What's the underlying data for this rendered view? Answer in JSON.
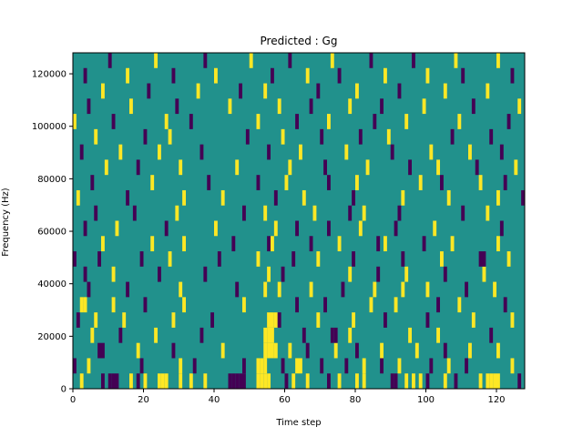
{
  "chart_data": {
    "type": "heatmap",
    "title": "Predicted : Gg",
    "xlabel": "Time step",
    "ylabel": "Frequency (Hz)",
    "xlim": [
      0,
      128
    ],
    "ylim": [
      0,
      128000
    ],
    "x_ticks": [
      0,
      20,
      40,
      60,
      80,
      100,
      120
    ],
    "y_ticks": [
      0,
      20000,
      40000,
      60000,
      80000,
      100000,
      120000
    ],
    "x_tick_labels": [
      "0",
      "20",
      "40",
      "60",
      "80",
      "100",
      "120"
    ],
    "y_tick_labels": [
      "0",
      "20000",
      "40000",
      "60000",
      "80000",
      "100000",
      "120000"
    ],
    "grid": false,
    "colormap": "viridis",
    "values_range": [
      -1,
      1
    ],
    "colors": {
      "low": "#440154",
      "mid": "#21918c",
      "high": "#fde725"
    },
    "background_value": 0,
    "cells": [
      [
        2,
        0,
        1
      ],
      [
        8,
        0,
        -1
      ],
      [
        10,
        0,
        -1
      ],
      [
        11,
        0,
        -1
      ],
      [
        12,
        0,
        -1
      ],
      [
        16,
        0,
        1
      ],
      [
        18,
        0,
        -1
      ],
      [
        20,
        0,
        1
      ],
      [
        24,
        0,
        1
      ],
      [
        25,
        0,
        1
      ],
      [
        26,
        0,
        1
      ],
      [
        30,
        0,
        1
      ],
      [
        33,
        0,
        1
      ],
      [
        37,
        0,
        1
      ],
      [
        44,
        0,
        -1
      ],
      [
        45,
        0,
        -1
      ],
      [
        46,
        0,
        -1
      ],
      [
        47,
        0,
        -1
      ],
      [
        48,
        0,
        -1
      ],
      [
        52,
        0,
        1
      ],
      [
        53,
        0,
        1
      ],
      [
        54,
        0,
        1
      ],
      [
        55,
        0,
        1
      ],
      [
        60,
        0,
        -1
      ],
      [
        62,
        0,
        1
      ],
      [
        66,
        0,
        1
      ],
      [
        72,
        0,
        -1
      ],
      [
        75,
        0,
        1
      ],
      [
        80,
        0,
        1
      ],
      [
        82,
        0,
        1
      ],
      [
        90,
        0,
        -1
      ],
      [
        91,
        0,
        -1
      ],
      [
        94,
        0,
        1
      ],
      [
        96,
        0,
        1
      ],
      [
        98,
        0,
        1
      ],
      [
        100,
        0,
        -1
      ],
      [
        105,
        0,
        1
      ],
      [
        108,
        0,
        -1
      ],
      [
        115,
        0,
        1
      ],
      [
        117,
        0,
        1
      ],
      [
        118,
        0,
        1
      ],
      [
        119,
        0,
        1
      ],
      [
        120,
        0,
        1
      ],
      [
        126,
        0,
        -1
      ],
      [
        0,
        1,
        -1
      ],
      [
        4,
        1,
        1
      ],
      [
        19,
        1,
        -1
      ],
      [
        30,
        1,
        1
      ],
      [
        34,
        1,
        -1
      ],
      [
        48,
        1,
        -1
      ],
      [
        52,
        1,
        1
      ],
      [
        53,
        1,
        1
      ],
      [
        54,
        1,
        1
      ],
      [
        59,
        1,
        -1
      ],
      [
        63,
        1,
        1
      ],
      [
        64,
        1,
        1
      ],
      [
        70,
        1,
        -1
      ],
      [
        77,
        1,
        -1
      ],
      [
        82,
        1,
        1
      ],
      [
        87,
        1,
        -1
      ],
      [
        92,
        1,
        1
      ],
      [
        101,
        1,
        -1
      ],
      [
        106,
        1,
        1
      ],
      [
        111,
        1,
        -1
      ],
      [
        124,
        1,
        1
      ],
      [
        7,
        2,
        -1
      ],
      [
        8,
        2,
        -1
      ],
      [
        18,
        2,
        1
      ],
      [
        28,
        2,
        -1
      ],
      [
        42,
        2,
        1
      ],
      [
        54,
        2,
        1
      ],
      [
        55,
        2,
        1
      ],
      [
        56,
        2,
        1
      ],
      [
        57,
        2,
        1
      ],
      [
        61,
        2,
        1
      ],
      [
        66,
        2,
        -1
      ],
      [
        74,
        2,
        1
      ],
      [
        80,
        2,
        -1
      ],
      [
        87,
        2,
        1
      ],
      [
        97,
        2,
        1
      ],
      [
        105,
        2,
        -1
      ],
      [
        112,
        2,
        1
      ],
      [
        120,
        2,
        1
      ],
      [
        5,
        3,
        1
      ],
      [
        13,
        3,
        -1
      ],
      [
        23,
        3,
        1
      ],
      [
        36,
        3,
        -1
      ],
      [
        54,
        3,
        1
      ],
      [
        55,
        3,
        1
      ],
      [
        56,
        3,
        1
      ],
      [
        65,
        3,
        -1
      ],
      [
        73,
        3,
        -1
      ],
      [
        74,
        3,
        -1
      ],
      [
        78,
        3,
        1
      ],
      [
        95,
        3,
        1
      ],
      [
        103,
        3,
        1
      ],
      [
        118,
        3,
        -1
      ],
      [
        1,
        4,
        -1
      ],
      [
        6,
        4,
        1
      ],
      [
        14,
        4,
        1
      ],
      [
        28,
        4,
        1
      ],
      [
        39,
        4,
        -1
      ],
      [
        55,
        4,
        1
      ],
      [
        56,
        4,
        1
      ],
      [
        57,
        4,
        1
      ],
      [
        58,
        4,
        -1
      ],
      [
        69,
        4,
        1
      ],
      [
        79,
        4,
        1
      ],
      [
        88,
        4,
        -1
      ],
      [
        100,
        4,
        -1
      ],
      [
        113,
        4,
        1
      ],
      [
        124,
        4,
        1
      ],
      [
        2,
        5,
        1
      ],
      [
        3,
        5,
        1
      ],
      [
        11,
        5,
        1
      ],
      [
        20,
        5,
        -1
      ],
      [
        31,
        5,
        1
      ],
      [
        48,
        5,
        1
      ],
      [
        63,
        5,
        -1
      ],
      [
        71,
        5,
        -1
      ],
      [
        84,
        5,
        1
      ],
      [
        91,
        5,
        1
      ],
      [
        103,
        5,
        -1
      ],
      [
        109,
        5,
        1
      ],
      [
        122,
        5,
        -1
      ],
      [
        4,
        6,
        -1
      ],
      [
        15,
        6,
        -1
      ],
      [
        30,
        6,
        1
      ],
      [
        46,
        6,
        -1
      ],
      [
        54,
        6,
        1
      ],
      [
        58,
        6,
        1
      ],
      [
        67,
        6,
        1
      ],
      [
        76,
        6,
        -1
      ],
      [
        85,
        6,
        1
      ],
      [
        93,
        6,
        1
      ],
      [
        100,
        6,
        1
      ],
      [
        111,
        6,
        -1
      ],
      [
        119,
        6,
        1
      ],
      [
        3,
        7,
        -1
      ],
      [
        11,
        7,
        1
      ],
      [
        24,
        7,
        -1
      ],
      [
        37,
        7,
        -1
      ],
      [
        55,
        7,
        1
      ],
      [
        59,
        7,
        -1
      ],
      [
        78,
        7,
        1
      ],
      [
        86,
        7,
        -1
      ],
      [
        94,
        7,
        1
      ],
      [
        105,
        7,
        -1
      ],
      [
        116,
        7,
        1
      ],
      [
        0,
        8,
        -1
      ],
      [
        7,
        8,
        -1
      ],
      [
        19,
        8,
        -1
      ],
      [
        27,
        8,
        1
      ],
      [
        41,
        8,
        -1
      ],
      [
        52,
        8,
        1
      ],
      [
        62,
        8,
        -1
      ],
      [
        69,
        8,
        1
      ],
      [
        79,
        8,
        -1
      ],
      [
        93,
        8,
        -1
      ],
      [
        104,
        8,
        1
      ],
      [
        115,
        8,
        -1
      ],
      [
        116,
        8,
        -1
      ],
      [
        123,
        8,
        1
      ],
      [
        8,
        9,
        1
      ],
      [
        22,
        9,
        1
      ],
      [
        31,
        9,
        1
      ],
      [
        45,
        9,
        -1
      ],
      [
        55,
        9,
        -1
      ],
      [
        56,
        9,
        1
      ],
      [
        67,
        9,
        -1
      ],
      [
        75,
        9,
        1
      ],
      [
        86,
        9,
        -1
      ],
      [
        88,
        9,
        1
      ],
      [
        99,
        9,
        -1
      ],
      [
        107,
        9,
        1
      ],
      [
        120,
        9,
        1
      ],
      [
        3,
        10,
        -1
      ],
      [
        12,
        10,
        1
      ],
      [
        26,
        10,
        -1
      ],
      [
        40,
        10,
        1
      ],
      [
        57,
        10,
        1
      ],
      [
        63,
        10,
        -1
      ],
      [
        72,
        10,
        -1
      ],
      [
        81,
        10,
        1
      ],
      [
        91,
        10,
        -1
      ],
      [
        102,
        10,
        1
      ],
      [
        121,
        10,
        -1
      ],
      [
        6,
        11,
        -1
      ],
      [
        17,
        11,
        -1
      ],
      [
        29,
        11,
        1
      ],
      [
        48,
        11,
        -1
      ],
      [
        54,
        11,
        1
      ],
      [
        68,
        11,
        1
      ],
      [
        78,
        11,
        -1
      ],
      [
        82,
        11,
        1
      ],
      [
        92,
        11,
        -1
      ],
      [
        110,
        11,
        -1
      ],
      [
        117,
        11,
        1
      ],
      [
        1,
        12,
        1
      ],
      [
        15,
        12,
        -1
      ],
      [
        31,
        12,
        1
      ],
      [
        42,
        12,
        1
      ],
      [
        57,
        12,
        -1
      ],
      [
        65,
        12,
        1
      ],
      [
        79,
        12,
        -1
      ],
      [
        93,
        12,
        1
      ],
      [
        106,
        12,
        1
      ],
      [
        120,
        12,
        1
      ],
      [
        127,
        12,
        -1
      ],
      [
        5,
        13,
        -1
      ],
      [
        22,
        13,
        1
      ],
      [
        38,
        13,
        -1
      ],
      [
        52,
        13,
        -1
      ],
      [
        60,
        13,
        1
      ],
      [
        72,
        13,
        -1
      ],
      [
        80,
        13,
        1
      ],
      [
        98,
        13,
        1
      ],
      [
        104,
        13,
        -1
      ],
      [
        115,
        13,
        1
      ],
      [
        122,
        13,
        -1
      ],
      [
        9,
        14,
        1
      ],
      [
        18,
        14,
        -1
      ],
      [
        30,
        14,
        1
      ],
      [
        46,
        14,
        1
      ],
      [
        61,
        14,
        1
      ],
      [
        71,
        14,
        -1
      ],
      [
        83,
        14,
        1
      ],
      [
        95,
        14,
        -1
      ],
      [
        103,
        14,
        1
      ],
      [
        114,
        14,
        -1
      ],
      [
        125,
        14,
        1
      ],
      [
        2,
        15,
        -1
      ],
      [
        13,
        15,
        1
      ],
      [
        24,
        15,
        1
      ],
      [
        36,
        15,
        -1
      ],
      [
        55,
        15,
        -1
      ],
      [
        64,
        15,
        1
      ],
      [
        77,
        15,
        1
      ],
      [
        90,
        15,
        -1
      ],
      [
        101,
        15,
        1
      ],
      [
        112,
        15,
        1
      ],
      [
        121,
        15,
        -1
      ],
      [
        6,
        16,
        1
      ],
      [
        20,
        16,
        -1
      ],
      [
        27,
        16,
        1
      ],
      [
        49,
        16,
        -1
      ],
      [
        59,
        16,
        1
      ],
      [
        70,
        16,
        -1
      ],
      [
        81,
        16,
        -1
      ],
      [
        89,
        16,
        1
      ],
      [
        107,
        16,
        -1
      ],
      [
        118,
        16,
        -1
      ],
      [
        0,
        17,
        1
      ],
      [
        11,
        17,
        -1
      ],
      [
        26,
        17,
        1
      ],
      [
        33,
        17,
        -1
      ],
      [
        52,
        17,
        1
      ],
      [
        63,
        17,
        -1
      ],
      [
        72,
        17,
        1
      ],
      [
        85,
        17,
        -1
      ],
      [
        94,
        17,
        1
      ],
      [
        109,
        17,
        1
      ],
      [
        123,
        17,
        -1
      ],
      [
        4,
        18,
        -1
      ],
      [
        16,
        18,
        1
      ],
      [
        29,
        18,
        -1
      ],
      [
        44,
        18,
        1
      ],
      [
        58,
        18,
        1
      ],
      [
        67,
        18,
        -1
      ],
      [
        78,
        18,
        1
      ],
      [
        87,
        18,
        -1
      ],
      [
        99,
        18,
        1
      ],
      [
        113,
        18,
        -1
      ],
      [
        126,
        18,
        1
      ],
      [
        8,
        19,
        1
      ],
      [
        21,
        19,
        -1
      ],
      [
        35,
        19,
        1
      ],
      [
        47,
        19,
        -1
      ],
      [
        54,
        19,
        1
      ],
      [
        69,
        19,
        -1
      ],
      [
        80,
        19,
        1
      ],
      [
        92,
        19,
        -1
      ],
      [
        105,
        19,
        1
      ],
      [
        117,
        19,
        1
      ],
      [
        3,
        20,
        -1
      ],
      [
        15,
        20,
        1
      ],
      [
        28,
        20,
        -1
      ],
      [
        40,
        20,
        1
      ],
      [
        56,
        20,
        -1
      ],
      [
        66,
        20,
        1
      ],
      [
        75,
        20,
        -1
      ],
      [
        88,
        20,
        1
      ],
      [
        100,
        20,
        1
      ],
      [
        110,
        20,
        -1
      ],
      [
        124,
        20,
        -1
      ],
      [
        10,
        21,
        -1
      ],
      [
        23,
        21,
        1
      ],
      [
        37,
        21,
        -1
      ],
      [
        50,
        21,
        1
      ],
      [
        61,
        21,
        -1
      ],
      [
        73,
        21,
        1
      ],
      [
        84,
        21,
        -1
      ],
      [
        96,
        21,
        -1
      ],
      [
        108,
        21,
        1
      ],
      [
        120,
        21,
        1
      ]
    ]
  }
}
